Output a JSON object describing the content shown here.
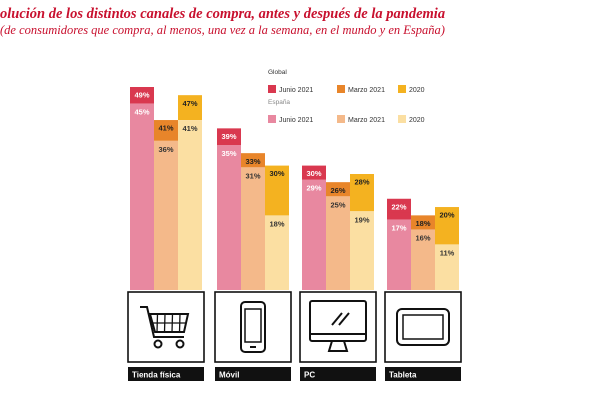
{
  "title": "olución de los distintos canales de compra, antes y después de la pandemia",
  "subtitle": "(de consumidores que compra, al menos, una vez a la semana, en el mundo y en España)",
  "colors": {
    "global_junio_2021": "#d9384f",
    "global_marzo_2021": "#e8852a",
    "global_2020": "#f4b220",
    "espana_junio_2021": "#e888a0",
    "espana_marzo_2021": "#f4b98a",
    "espana_2020": "#fbdfa2",
    "category_label_bg": "#111111",
    "icon_stroke": "#111111"
  },
  "legend": {
    "groups": [
      {
        "title": "Global",
        "items": [
          "Junio 2021",
          "Marzo 2021",
          "2020"
        ]
      },
      {
        "title": "España",
        "items": [
          "Junio 2021",
          "Marzo 2021",
          "2020"
        ]
      }
    ]
  },
  "chart_data": {
    "type": "bar",
    "title": "",
    "categories": [
      "Tienda física",
      "Móvil",
      "PC",
      "Tableta"
    ],
    "unit": "%",
    "series": [
      {
        "name": "Global Junio 2021",
        "group": "Global",
        "period": "Junio 2021",
        "values": [
          49,
          39,
          30,
          22
        ],
        "labels": [
          "49%",
          "39%",
          "30%",
          "22%"
        ]
      },
      {
        "name": "Global Marzo 2021",
        "group": "Global",
        "period": "Marzo 2021",
        "values": [
          41,
          33,
          26,
          18
        ],
        "labels": [
          "41%",
          "33%",
          "26%",
          "18%"
        ]
      },
      {
        "name": "Global 2020",
        "group": "Global",
        "period": "2020",
        "values": [
          47,
          30,
          28,
          20
        ],
        "labels": [
          "47%",
          "30%",
          "28%",
          "20%"
        ]
      },
      {
        "name": "España Junio 2021",
        "group": "España",
        "period": "Junio 2021",
        "values": [
          45,
          35,
          29,
          17
        ],
        "labels": [
          "45%",
          "35%",
          "29%",
          "17%"
        ]
      },
      {
        "name": "España Marzo 2021",
        "group": "España",
        "period": "Marzo 2021",
        "values": [
          36,
          31,
          25,
          16
        ],
        "labels": [
          "36%",
          "31%",
          "25%",
          "16%"
        ]
      },
      {
        "name": "España 2020",
        "group": "España",
        "period": "2020",
        "values": [
          41,
          18,
          19,
          11
        ],
        "labels": [
          "41%",
          "18%",
          "19%",
          "11%"
        ]
      }
    ],
    "icons": [
      "shopping-cart-icon",
      "mobile-phone-icon",
      "desktop-monitor-icon",
      "tablet-icon"
    ],
    "ylim": [
      0,
      49
    ],
    "grid": false,
    "legend_position": "top-center"
  }
}
